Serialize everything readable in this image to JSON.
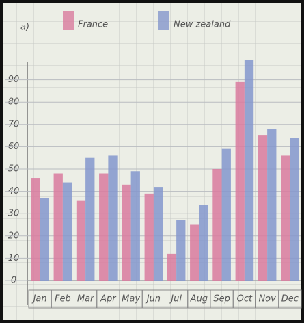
{
  "chart_data": {
    "type": "bar",
    "title": "a)",
    "categories": [
      "Jan",
      "Feb",
      "Mar",
      "Apr",
      "May",
      "Jun",
      "Jul",
      "Aug",
      "Sep",
      "Oct",
      "Nov",
      "Dec"
    ],
    "series": [
      {
        "name": "France",
        "color": "#d97a9e",
        "values": [
          46,
          48,
          36,
          48,
          43,
          39,
          12,
          25,
          50,
          89,
          65,
          56
        ]
      },
      {
        "name": "New zealand",
        "color": "#8496cc",
        "values": [
          37,
          44,
          55,
          56,
          49,
          42,
          27,
          34,
          59,
          99,
          68,
          64
        ]
      }
    ],
    "ylim": [
      0,
      100
    ],
    "yticks": [
      0,
      10,
      20,
      30,
      40,
      50,
      60,
      70,
      80,
      90
    ],
    "grid": true
  }
}
